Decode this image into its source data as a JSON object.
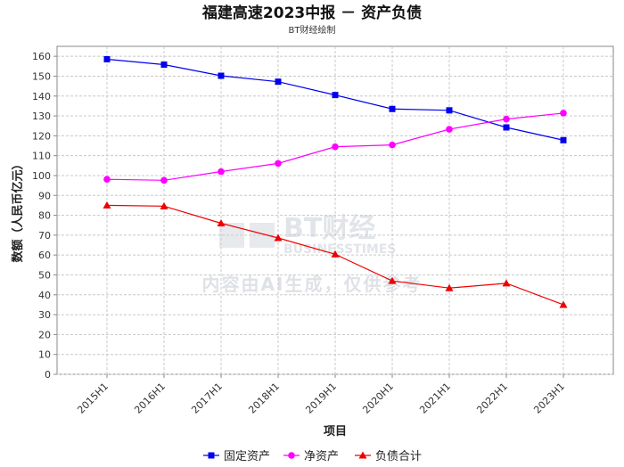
{
  "chart_data": {
    "type": "line",
    "title": "福建高速2023中报 － 资产负债",
    "subtitle": "BT财经绘制",
    "xlabel": "项目",
    "ylabel": "数额（人民币亿元）",
    "categories": [
      "2015H1",
      "2016H1",
      "2017H1",
      "2018H1",
      "2019H1",
      "2020H1",
      "2021H1",
      "2022H1",
      "2023H1"
    ],
    "ylim": [
      0,
      165
    ],
    "yticks": [
      0,
      10,
      20,
      30,
      40,
      50,
      60,
      70,
      80,
      90,
      100,
      110,
      120,
      130,
      140,
      150,
      160
    ],
    "grid": true,
    "legend_position": "bottom",
    "series": [
      {
        "name": "固定资产",
        "color": "#0000ee",
        "marker": "square",
        "values": [
          158.5,
          155.8,
          150.2,
          147.2,
          140.5,
          133.5,
          132.8,
          124.2,
          117.8
        ]
      },
      {
        "name": "净资产",
        "color": "#ff00ff",
        "marker": "circle",
        "values": [
          98.1,
          97.6,
          102.0,
          106.1,
          114.5,
          115.4,
          123.3,
          128.4,
          131.4
        ]
      },
      {
        "name": "负债合计",
        "color": "#ee0000",
        "marker": "triangle",
        "values": [
          85.0,
          84.6,
          76.0,
          68.6,
          60.4,
          47.0,
          43.4,
          45.8,
          35.0
        ]
      }
    ]
  },
  "watermark": {
    "brand_cn": "BT财经",
    "brand_en": "BUSINESSTIMES",
    "notice": "内容由AI生成，仅供参考"
  }
}
